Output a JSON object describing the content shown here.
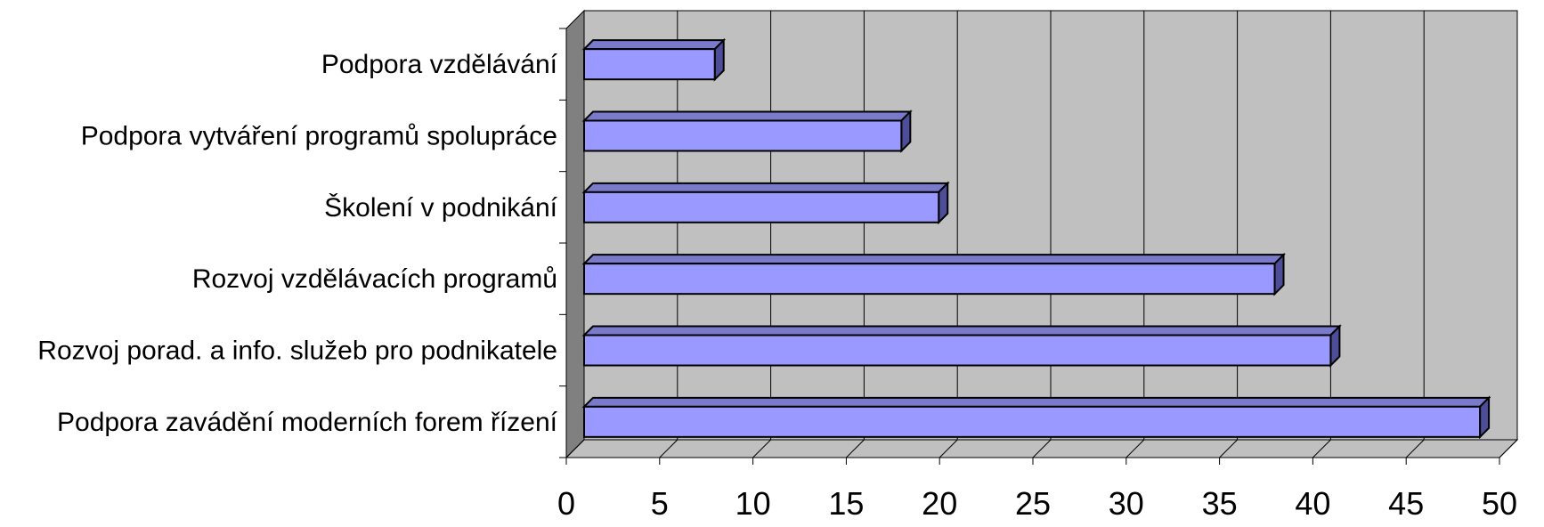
{
  "chart_data": {
    "type": "bar",
    "orientation": "horizontal",
    "style": "3d",
    "categories": [
      "Podpora vzdělávání",
      "Podpora vytváření programů spolupráce",
      "Školení v podnikání",
      "Rozvoj vzdělávacích programů",
      "Rozvoj porad. a info. služeb pro podnikatele",
      "Podpora zavádění moderních forem řízení"
    ],
    "values": [
      7,
      17,
      19,
      37,
      40,
      48
    ],
    "xlim": [
      0,
      50
    ],
    "xticks": [
      "0",
      "5",
      "10",
      "15",
      "20",
      "25",
      "30",
      "35",
      "40",
      "45",
      "50"
    ],
    "grid": true,
    "legend": "none",
    "colors": {
      "bar_front": "#9999ff",
      "bar_top": "#7a7acc",
      "bar_side": "#4d4d99",
      "wall": "#c0c0c0",
      "wall_side": "#808080",
      "floor": "#c0c0c0",
      "gridline": "#000000"
    }
  }
}
